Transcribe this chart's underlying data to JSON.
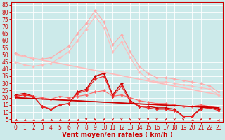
{
  "background_color": "#cceaea",
  "grid_color": "#ffffff",
  "xlabel": "Vent moyen/en rafales ( km/h )",
  "xlabel_color": "#cc0000",
  "xlabel_fontsize": 6.5,
  "xtick_fontsize": 5.5,
  "ytick_fontsize": 5.5,
  "xticks": [
    0,
    1,
    2,
    3,
    4,
    5,
    6,
    7,
    8,
    9,
    10,
    11,
    12,
    13,
    14,
    15,
    16,
    17,
    18,
    19,
    20,
    21,
    22,
    23
  ],
  "yticks": [
    5,
    10,
    15,
    20,
    25,
    30,
    35,
    40,
    45,
    50,
    55,
    60,
    65,
    70,
    75,
    80,
    85
  ],
  "xlim": [
    -0.5,
    23.5
  ],
  "ylim": [
    3,
    87
  ],
  "series": [
    {
      "x": [
        0,
        1,
        2,
        3,
        4,
        5,
        6,
        7,
        8,
        9,
        10,
        11,
        12,
        13,
        14,
        15,
        16,
        17,
        18,
        19,
        20,
        21,
        22,
        23
      ],
      "y": [
        51,
        49,
        47,
        47,
        48,
        52,
        56,
        65,
        72,
        81,
        73,
        57,
        64,
        52,
        42,
        37,
        34,
        34,
        33,
        32,
        31,
        30,
        28,
        24
      ],
      "color": "#ffaaaa",
      "linewidth": 0.8,
      "marker": "D",
      "markersize": 2.0
    },
    {
      "x": [
        0,
        1,
        2,
        3,
        4,
        5,
        6,
        7,
        8,
        9,
        10,
        11,
        12,
        13,
        14,
        15,
        16,
        17,
        18,
        19,
        20,
        21,
        22,
        23
      ],
      "y": [
        45,
        43,
        42,
        43,
        44,
        48,
        52,
        60,
        68,
        77,
        69,
        52,
        59,
        48,
        38,
        33,
        31,
        31,
        30,
        29,
        28,
        27,
        26,
        22
      ],
      "color": "#ffbbbb",
      "linewidth": 0.8,
      "marker": "D",
      "markersize": 2.0
    },
    {
      "x": [
        0,
        1,
        2,
        3,
        4,
        5,
        6,
        7,
        8,
        9,
        10,
        11,
        12,
        13,
        14,
        15,
        16,
        17,
        18,
        19,
        20,
        21,
        22,
        23
      ],
      "y": [
        22,
        23,
        21,
        14,
        12,
        15,
        16,
        24,
        26,
        35,
        37,
        22,
        30,
        18,
        14,
        14,
        13,
        13,
        12,
        7,
        7,
        13,
        14,
        12
      ],
      "color": "#cc0000",
      "linewidth": 1.0,
      "marker": "D",
      "markersize": 2.0
    },
    {
      "x": [
        0,
        1,
        2,
        3,
        4,
        5,
        6,
        7,
        8,
        9,
        10,
        11,
        12,
        13,
        14,
        15,
        16,
        17,
        18,
        19,
        20,
        21,
        22,
        23
      ],
      "y": [
        21,
        22,
        21,
        20,
        19,
        21,
        20,
        21,
        22,
        24,
        25,
        21,
        22,
        20,
        18,
        17,
        16,
        16,
        15,
        14,
        14,
        15,
        14,
        13
      ],
      "color": "#ff6666",
      "linewidth": 0.8,
      "marker": "D",
      "markersize": 2.0
    },
    {
      "x": [
        0,
        1,
        2,
        3,
        4,
        5,
        6,
        7,
        8,
        9,
        10,
        11,
        12,
        13,
        14,
        15,
        16,
        17,
        18,
        19,
        20,
        21,
        22,
        23
      ],
      "y": [
        21,
        22,
        21,
        14,
        12,
        15,
        16,
        23,
        25,
        33,
        35,
        21,
        28,
        17,
        14,
        13,
        12,
        12,
        11,
        7,
        7,
        12,
        13,
        11
      ],
      "color": "#ee2222",
      "linewidth": 0.8,
      "marker": "D",
      "markersize": 2.0
    },
    {
      "x": [
        0,
        23
      ],
      "y": [
        20,
        13
      ],
      "color": "#cc0000",
      "linewidth": 1.2,
      "marker": null,
      "markersize": 0
    },
    {
      "x": [
        0,
        23
      ],
      "y": [
        20,
        13
      ],
      "color": "#cc0000",
      "linewidth": 0.8,
      "marker": null,
      "markersize": 0
    },
    {
      "x": [
        0,
        23
      ],
      "y": [
        50,
        22
      ],
      "color": "#ffbbbb",
      "linewidth": 1.2,
      "marker": null,
      "markersize": 0
    }
  ],
  "arrow_angles": [
    225,
    225,
    225,
    225,
    225,
    225,
    225,
    225,
    270,
    270,
    270,
    270,
    270,
    270,
    270,
    270,
    270,
    270,
    270,
    270,
    225,
    270,
    270,
    180
  ]
}
